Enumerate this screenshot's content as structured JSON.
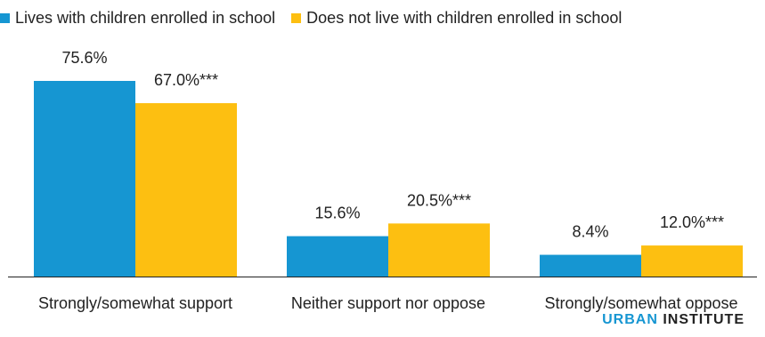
{
  "chart_data": {
    "type": "bar",
    "categories": [
      "Strongly/somewhat support",
      "Neither support nor oppose",
      "Strongly/somewhat oppose"
    ],
    "series": [
      {
        "name": "Lives with children enrolled in school",
        "values": [
          75.6,
          15.6,
          8.4
        ],
        "labels": [
          "75.6%",
          "15.6%",
          "8.4%"
        ],
        "color": "#1696d2"
      },
      {
        "name": "Does not live with children enrolled in school",
        "values": [
          67.0,
          20.5,
          12.0
        ],
        "labels": [
          "67.0%***",
          "20.5%***",
          "12.0%***"
        ],
        "color": "#fdbf11"
      }
    ],
    "ylim": [
      0,
      80
    ],
    "grid": false,
    "legend_position": "top-left"
  },
  "legend": {
    "series_1": "Lives with children enrolled in school",
    "series_2": "Does not live with children enrolled in school"
  },
  "brand": {
    "urban": "URBAN",
    "institute": "INSTITUTE"
  },
  "colors": {
    "series_1": "#1696d2",
    "series_2": "#fdbf11",
    "axis": "#222222",
    "text": "#222222"
  }
}
